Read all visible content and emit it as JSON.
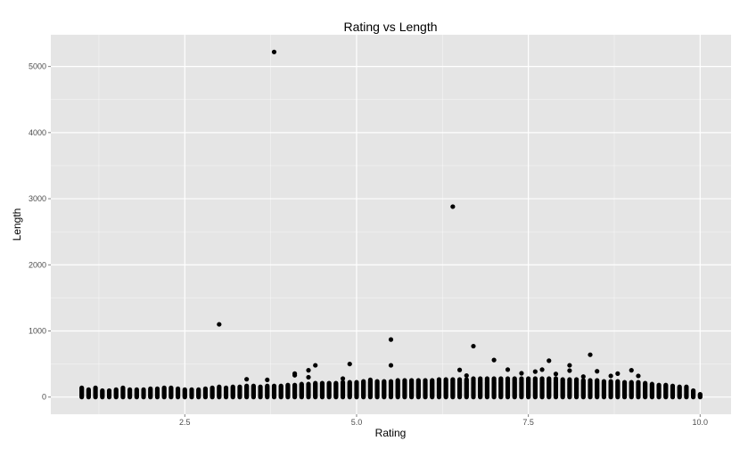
{
  "chart_data": {
    "type": "scatter",
    "title": "Rating vs Length",
    "xlabel": "Rating",
    "ylabel": "Length",
    "xlim": [
      0.55,
      10.45
    ],
    "ylim": [
      -260,
      5480
    ],
    "x_ticks": [
      2.5,
      5.0,
      7.5,
      10.0
    ],
    "x_tick_labels": [
      "2.5",
      "5.0",
      "7.5",
      "10.0"
    ],
    "y_ticks": [
      0,
      1000,
      2000,
      3000,
      4000,
      5000
    ],
    "y_tick_labels": [
      "0",
      "1000",
      "2000",
      "3000",
      "4000",
      "5000"
    ],
    "grid": true,
    "legend": "none",
    "background_color": "#e5e5e5",
    "grid_color": "#ffffff",
    "point_color": "#000000",
    "columns": [
      {
        "x": 1.0,
        "max": 140
      },
      {
        "x": 1.1,
        "max": 120
      },
      {
        "x": 1.2,
        "max": 145
      },
      {
        "x": 1.3,
        "max": 110
      },
      {
        "x": 1.4,
        "max": 105
      },
      {
        "x": 1.5,
        "max": 120
      },
      {
        "x": 1.6,
        "max": 150
      },
      {
        "x": 1.7,
        "max": 125
      },
      {
        "x": 1.8,
        "max": 120
      },
      {
        "x": 1.9,
        "max": 120
      },
      {
        "x": 2.0,
        "max": 130
      },
      {
        "x": 2.1,
        "max": 135
      },
      {
        "x": 2.2,
        "max": 150
      },
      {
        "x": 2.3,
        "max": 140
      },
      {
        "x": 2.4,
        "max": 130
      },
      {
        "x": 2.5,
        "max": 120
      },
      {
        "x": 2.6,
        "max": 125
      },
      {
        "x": 2.7,
        "max": 125
      },
      {
        "x": 2.8,
        "max": 130
      },
      {
        "x": 2.9,
        "max": 150
      },
      {
        "x": 3.0,
        "max": 155
      },
      {
        "x": 3.1,
        "max": 150
      },
      {
        "x": 3.2,
        "max": 160
      },
      {
        "x": 3.3,
        "max": 165
      },
      {
        "x": 3.4,
        "max": 170
      },
      {
        "x": 3.5,
        "max": 170
      },
      {
        "x": 3.6,
        "max": 165
      },
      {
        "x": 3.7,
        "max": 170
      },
      {
        "x": 3.8,
        "max": 175
      },
      {
        "x": 3.9,
        "max": 180
      },
      {
        "x": 4.0,
        "max": 185
      },
      {
        "x": 4.1,
        "max": 195
      },
      {
        "x": 4.2,
        "max": 200
      },
      {
        "x": 4.3,
        "max": 205
      },
      {
        "x": 4.4,
        "max": 210
      },
      {
        "x": 4.5,
        "max": 215
      },
      {
        "x": 4.6,
        "max": 220
      },
      {
        "x": 4.7,
        "max": 220
      },
      {
        "x": 4.8,
        "max": 225
      },
      {
        "x": 4.9,
        "max": 230
      },
      {
        "x": 5.0,
        "max": 235
      },
      {
        "x": 5.1,
        "max": 240
      },
      {
        "x": 5.2,
        "max": 240
      },
      {
        "x": 5.3,
        "max": 245
      },
      {
        "x": 5.4,
        "max": 245
      },
      {
        "x": 5.5,
        "max": 250
      },
      {
        "x": 5.6,
        "max": 255
      },
      {
        "x": 5.7,
        "max": 255
      },
      {
        "x": 5.8,
        "max": 260
      },
      {
        "x": 5.9,
        "max": 260
      },
      {
        "x": 6.0,
        "max": 265
      },
      {
        "x": 6.1,
        "max": 265
      },
      {
        "x": 6.2,
        "max": 270
      },
      {
        "x": 6.3,
        "max": 270
      },
      {
        "x": 6.4,
        "max": 275
      },
      {
        "x": 6.5,
        "max": 275
      },
      {
        "x": 6.6,
        "max": 275
      },
      {
        "x": 6.7,
        "max": 280
      },
      {
        "x": 6.8,
        "max": 280
      },
      {
        "x": 6.9,
        "max": 280
      },
      {
        "x": 7.0,
        "max": 285
      },
      {
        "x": 7.1,
        "max": 285
      },
      {
        "x": 7.2,
        "max": 285
      },
      {
        "x": 7.3,
        "max": 285
      },
      {
        "x": 7.4,
        "max": 285
      },
      {
        "x": 7.5,
        "max": 285
      },
      {
        "x": 7.6,
        "max": 285
      },
      {
        "x": 7.7,
        "max": 280
      },
      {
        "x": 7.8,
        "max": 280
      },
      {
        "x": 7.9,
        "max": 280
      },
      {
        "x": 8.0,
        "max": 275
      },
      {
        "x": 8.1,
        "max": 275
      },
      {
        "x": 8.2,
        "max": 270
      },
      {
        "x": 8.3,
        "max": 265
      },
      {
        "x": 8.4,
        "max": 260
      },
      {
        "x": 8.5,
        "max": 255
      },
      {
        "x": 8.6,
        "max": 250
      },
      {
        "x": 8.7,
        "max": 245
      },
      {
        "x": 8.8,
        "max": 240
      },
      {
        "x": 8.9,
        "max": 235
      },
      {
        "x": 9.0,
        "max": 230
      },
      {
        "x": 9.1,
        "max": 225
      },
      {
        "x": 9.2,
        "max": 215
      },
      {
        "x": 9.3,
        "max": 205
      },
      {
        "x": 9.4,
        "max": 195
      },
      {
        "x": 9.5,
        "max": 185
      },
      {
        "x": 9.6,
        "max": 175
      },
      {
        "x": 9.7,
        "max": 165
      },
      {
        "x": 9.8,
        "max": 155
      },
      {
        "x": 9.9,
        "max": 110
      },
      {
        "x": 10.0,
        "max": 50
      }
    ],
    "points": [
      {
        "x": 3.8,
        "y": 5220
      },
      {
        "x": 6.4,
        "y": 2880
      },
      {
        "x": 3.0,
        "y": 1100
      },
      {
        "x": 5.5,
        "y": 870
      },
      {
        "x": 6.7,
        "y": 770
      },
      {
        "x": 8.4,
        "y": 640
      },
      {
        "x": 7.0,
        "y": 560
      },
      {
        "x": 7.8,
        "y": 550
      },
      {
        "x": 4.9,
        "y": 500
      },
      {
        "x": 4.4,
        "y": 480
      },
      {
        "x": 5.5,
        "y": 480
      },
      {
        "x": 8.1,
        "y": 480
      },
      {
        "x": 6.5,
        "y": 410
      },
      {
        "x": 7.7,
        "y": 415
      },
      {
        "x": 7.2,
        "y": 415
      },
      {
        "x": 4.3,
        "y": 405
      },
      {
        "x": 8.1,
        "y": 400
      },
      {
        "x": 9.0,
        "y": 405
      },
      {
        "x": 8.5,
        "y": 390
      },
      {
        "x": 7.6,
        "y": 385
      },
      {
        "x": 7.4,
        "y": 360
      },
      {
        "x": 8.8,
        "y": 355
      },
      {
        "x": 4.1,
        "y": 355
      },
      {
        "x": 7.9,
        "y": 350
      },
      {
        "x": 4.1,
        "y": 330
      },
      {
        "x": 6.6,
        "y": 325
      },
      {
        "x": 9.1,
        "y": 320
      },
      {
        "x": 8.7,
        "y": 320
      },
      {
        "x": 8.3,
        "y": 310
      },
      {
        "x": 4.3,
        "y": 300
      },
      {
        "x": 3.4,
        "y": 270
      },
      {
        "x": 4.8,
        "y": 280
      },
      {
        "x": 3.7,
        "y": 260
      },
      {
        "x": 5.2,
        "y": 260
      }
    ]
  }
}
